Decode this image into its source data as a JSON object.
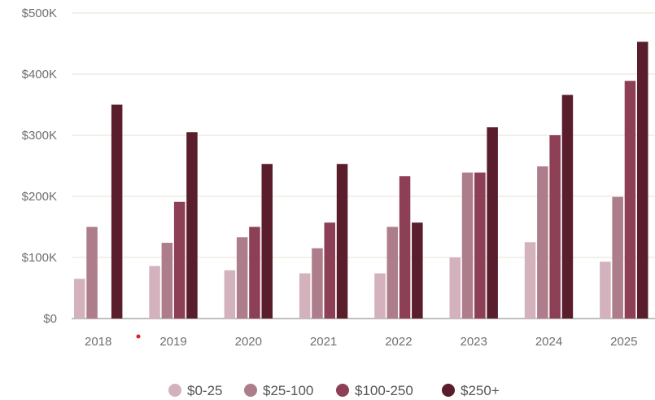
{
  "chart_data": {
    "type": "bar",
    "title": "",
    "xlabel": "",
    "ylabel": "",
    "categories": [
      "2018",
      "2019",
      "2020",
      "2021",
      "2022",
      "2023",
      "2024",
      "2025"
    ],
    "ylim": [
      0,
      500000
    ],
    "yticks": [
      0,
      100000,
      200000,
      300000,
      400000,
      500000
    ],
    "ytick_labels": [
      "$0",
      "$100K",
      "$200K",
      "$300K",
      "$400K",
      "$500K"
    ],
    "grid": true,
    "legend_position": "bottom",
    "series": [
      {
        "name": "$0-25",
        "color": "#d4b2bd",
        "values": [
          65000,
          86000,
          79000,
          74000,
          74000,
          100000,
          125000,
          93000
        ]
      },
      {
        "name": "$25-100",
        "color": "#ad7d8b",
        "values": [
          150000,
          124000,
          133000,
          115000,
          150000,
          239000,
          249000,
          199000
        ]
      },
      {
        "name": "$100-250",
        "color": "#8c3f55",
        "values": [
          0,
          191000,
          150000,
          157000,
          233000,
          239000,
          300000,
          389000
        ]
      },
      {
        "name": "$250+",
        "color": "#5a1d2c",
        "values": [
          350000,
          305000,
          253000,
          253000,
          157000,
          313000,
          366000,
          453000
        ]
      }
    ]
  }
}
